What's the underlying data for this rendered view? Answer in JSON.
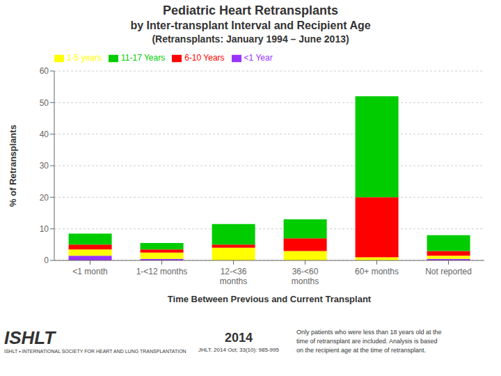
{
  "chart_data": {
    "type": "bar",
    "title": "Pediatric Heart Retransplants",
    "subtitle": [
      "by Inter-transplant Interval and Recipient Age",
      "(Retransplants: January 1994 – June 2013)"
    ],
    "categories": [
      "<1 month",
      "1-<12 months",
      "12-<36\nmonths",
      "36-<60\nmonths",
      "60+ months",
      "Not reported"
    ],
    "series": [
      {
        "name": "<1 Year",
        "color": "#9933FF",
        "values": [
          1.5,
          0.5,
          0.0,
          0.0,
          0.0,
          0.5
        ]
      },
      {
        "name": "1-5 years",
        "color": "#FFFF00",
        "values": [
          2.0,
          2.0,
          4.0,
          3.0,
          1.0,
          1.0
        ]
      },
      {
        "name": "6-10 Years",
        "color": "#FF0000",
        "values": [
          1.5,
          1.0,
          1.0,
          4.0,
          19.0,
          1.5
        ]
      },
      {
        "name": "11-17 Years",
        "color": "#00CC00",
        "values": [
          3.5,
          2.0,
          6.5,
          6.0,
          32.0,
          5.0
        ]
      }
    ],
    "xlabel": "Time Between Previous and Current Transplant",
    "ylabel": "% of Retransplants",
    "ylim": [
      0,
      60
    ],
    "yticks": [
      0,
      10,
      20,
      30,
      40,
      50,
      60
    ],
    "stacked": true,
    "grid": true,
    "legend": "upper left",
    "annotations": [
      "ISHLT",
      "ISHLT • INTERNATIONAL SOCIETY FOR HEART AND LUNG TRANSPLANTATION",
      "2014",
      "JHLT. 2014 Oct; 33(10): 985-995",
      "Only patients who were less than 18 years old at the\ntime of retransplant are included.  Analysis is based\non the recipient age at the time of retransplant."
    ]
  }
}
